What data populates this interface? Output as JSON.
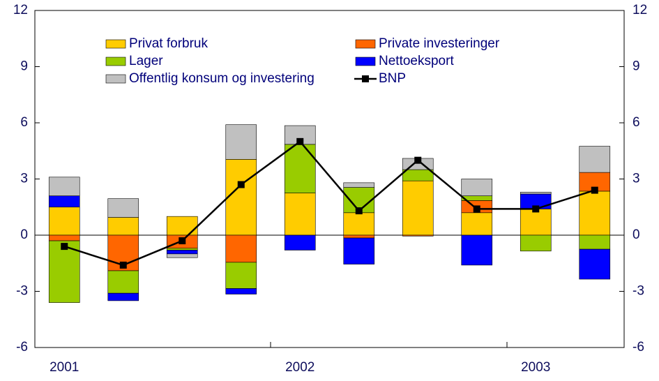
{
  "chart_data": {
    "type": "bar",
    "stacked": true,
    "categories": [
      "2001",
      null,
      null,
      null,
      "2002",
      null,
      null,
      null,
      "2003",
      null
    ],
    "series": [
      {
        "name": "Privat forbruk",
        "color": "#ffcc00",
        "values": [
          1.5,
          0.95,
          1.0,
          4.05,
          2.25,
          1.2,
          2.9,
          1.2,
          1.4,
          2.35
        ]
      },
      {
        "name": "Private investeringer",
        "color": "#ff6600",
        "values": [
          -0.3,
          -1.9,
          -0.7,
          -1.45,
          0,
          -0.15,
          -0.05,
          0.65,
          0,
          1.0
        ]
      },
      {
        "name": "Lager",
        "color": "#99cc00",
        "values": [
          -3.3,
          -1.2,
          -0.1,
          -1.4,
          2.6,
          1.35,
          0.6,
          0.25,
          -0.85,
          -0.75
        ]
      },
      {
        "name": "Nettoeksport",
        "color": "#0000ff",
        "values": [
          0.6,
          -0.4,
          -0.2,
          -0.3,
          -0.8,
          -1.4,
          0,
          -1.6,
          0.8,
          -1.6
        ]
      },
      {
        "name": "Offentlig konsum og investering",
        "color": "#c0c0c0",
        "values": [
          1.0,
          1.0,
          -0.2,
          1.85,
          1.0,
          0.25,
          0.6,
          0.9,
          0.1,
          1.4
        ]
      },
      {
        "name": "BNP",
        "type": "line",
        "color": "#000000",
        "values": [
          -0.6,
          -1.6,
          -0.3,
          2.7,
          5.0,
          1.3,
          4.0,
          1.4,
          1.4,
          2.4
        ]
      }
    ],
    "ylim": [
      -6,
      12
    ],
    "yticks": [
      -6,
      -3,
      0,
      3,
      6,
      9,
      12
    ],
    "y2lim": [
      -6,
      12
    ],
    "y2ticks": [
      -6,
      -3,
      0,
      3,
      6,
      9,
      12
    ]
  }
}
